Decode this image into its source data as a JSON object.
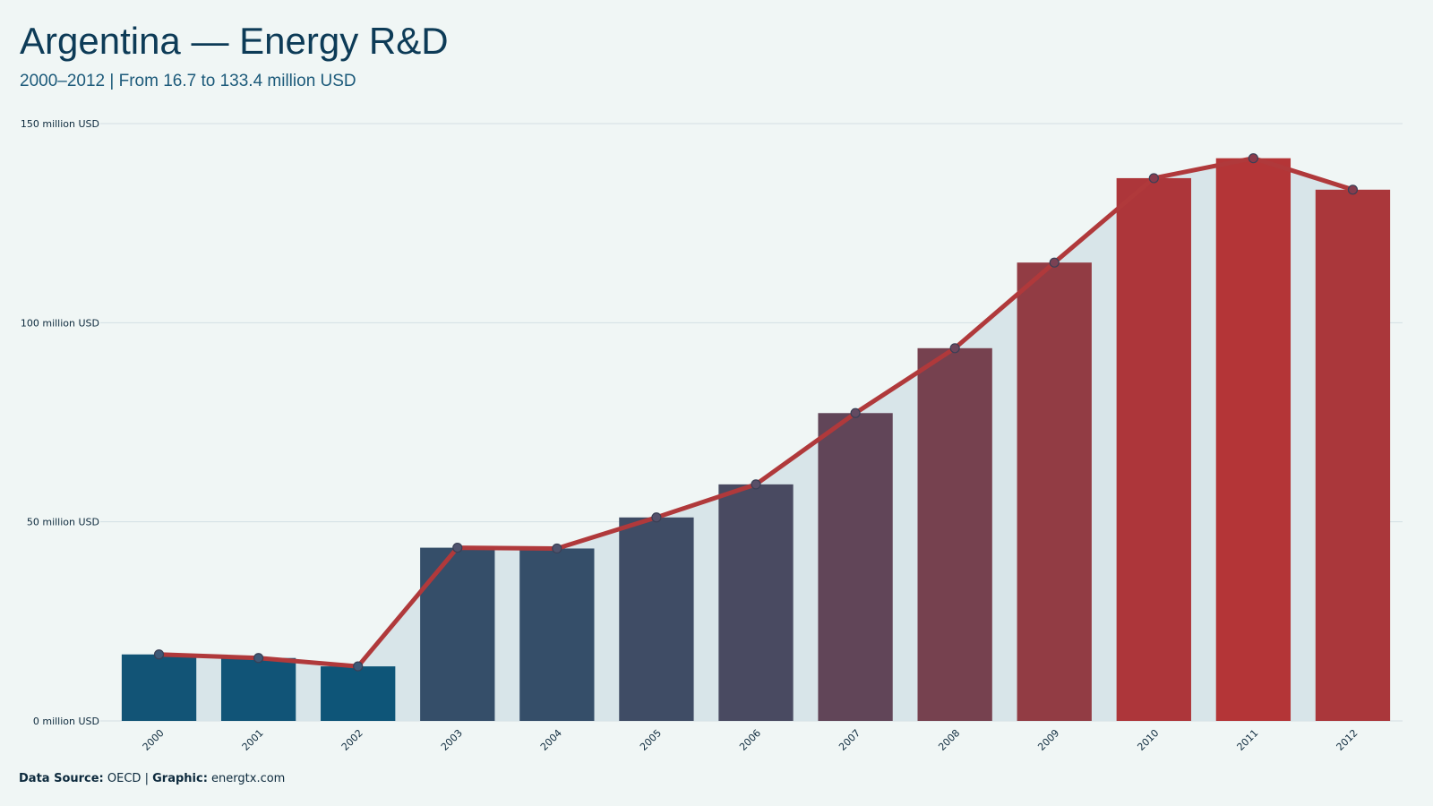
{
  "header": {
    "title": "Argentina — Energy R&D",
    "subtitle": "2000–2012 | From 16.7 to 133.4 million USD"
  },
  "footer": {
    "source_label": "Data Source:",
    "source_value": "OECD",
    "separator": "|",
    "graphic_label": "Graphic:",
    "graphic_value": "energtx.com"
  },
  "colors": {
    "background": "#f0f6f5",
    "area": "#d8e5e9",
    "grid": "#d3dfe3",
    "line": "#b0393b",
    "bar_start": "#0e5578",
    "bar_end": "#b43537",
    "marker_stroke": "#3a3f55"
  },
  "chart_data": {
    "type": "bar",
    "overlay": "line",
    "categories": [
      "2000",
      "2001",
      "2002",
      "2003",
      "2004",
      "2005",
      "2006",
      "2007",
      "2008",
      "2009",
      "2010",
      "2011",
      "2012"
    ],
    "values": [
      16.7,
      15.8,
      13.7,
      43.5,
      43.3,
      51.1,
      59.4,
      77.3,
      93.6,
      115.1,
      136.3,
      141.3,
      133.4
    ],
    "ylim": [
      0,
      150
    ],
    "yticks": [
      0,
      50,
      100,
      150
    ],
    "ytick_labels": [
      "0 million USD",
      "50 million USD",
      "100 million USD",
      "150 million USD"
    ],
    "xlabel": "",
    "ylabel": "",
    "grid": true,
    "legend": "none"
  }
}
